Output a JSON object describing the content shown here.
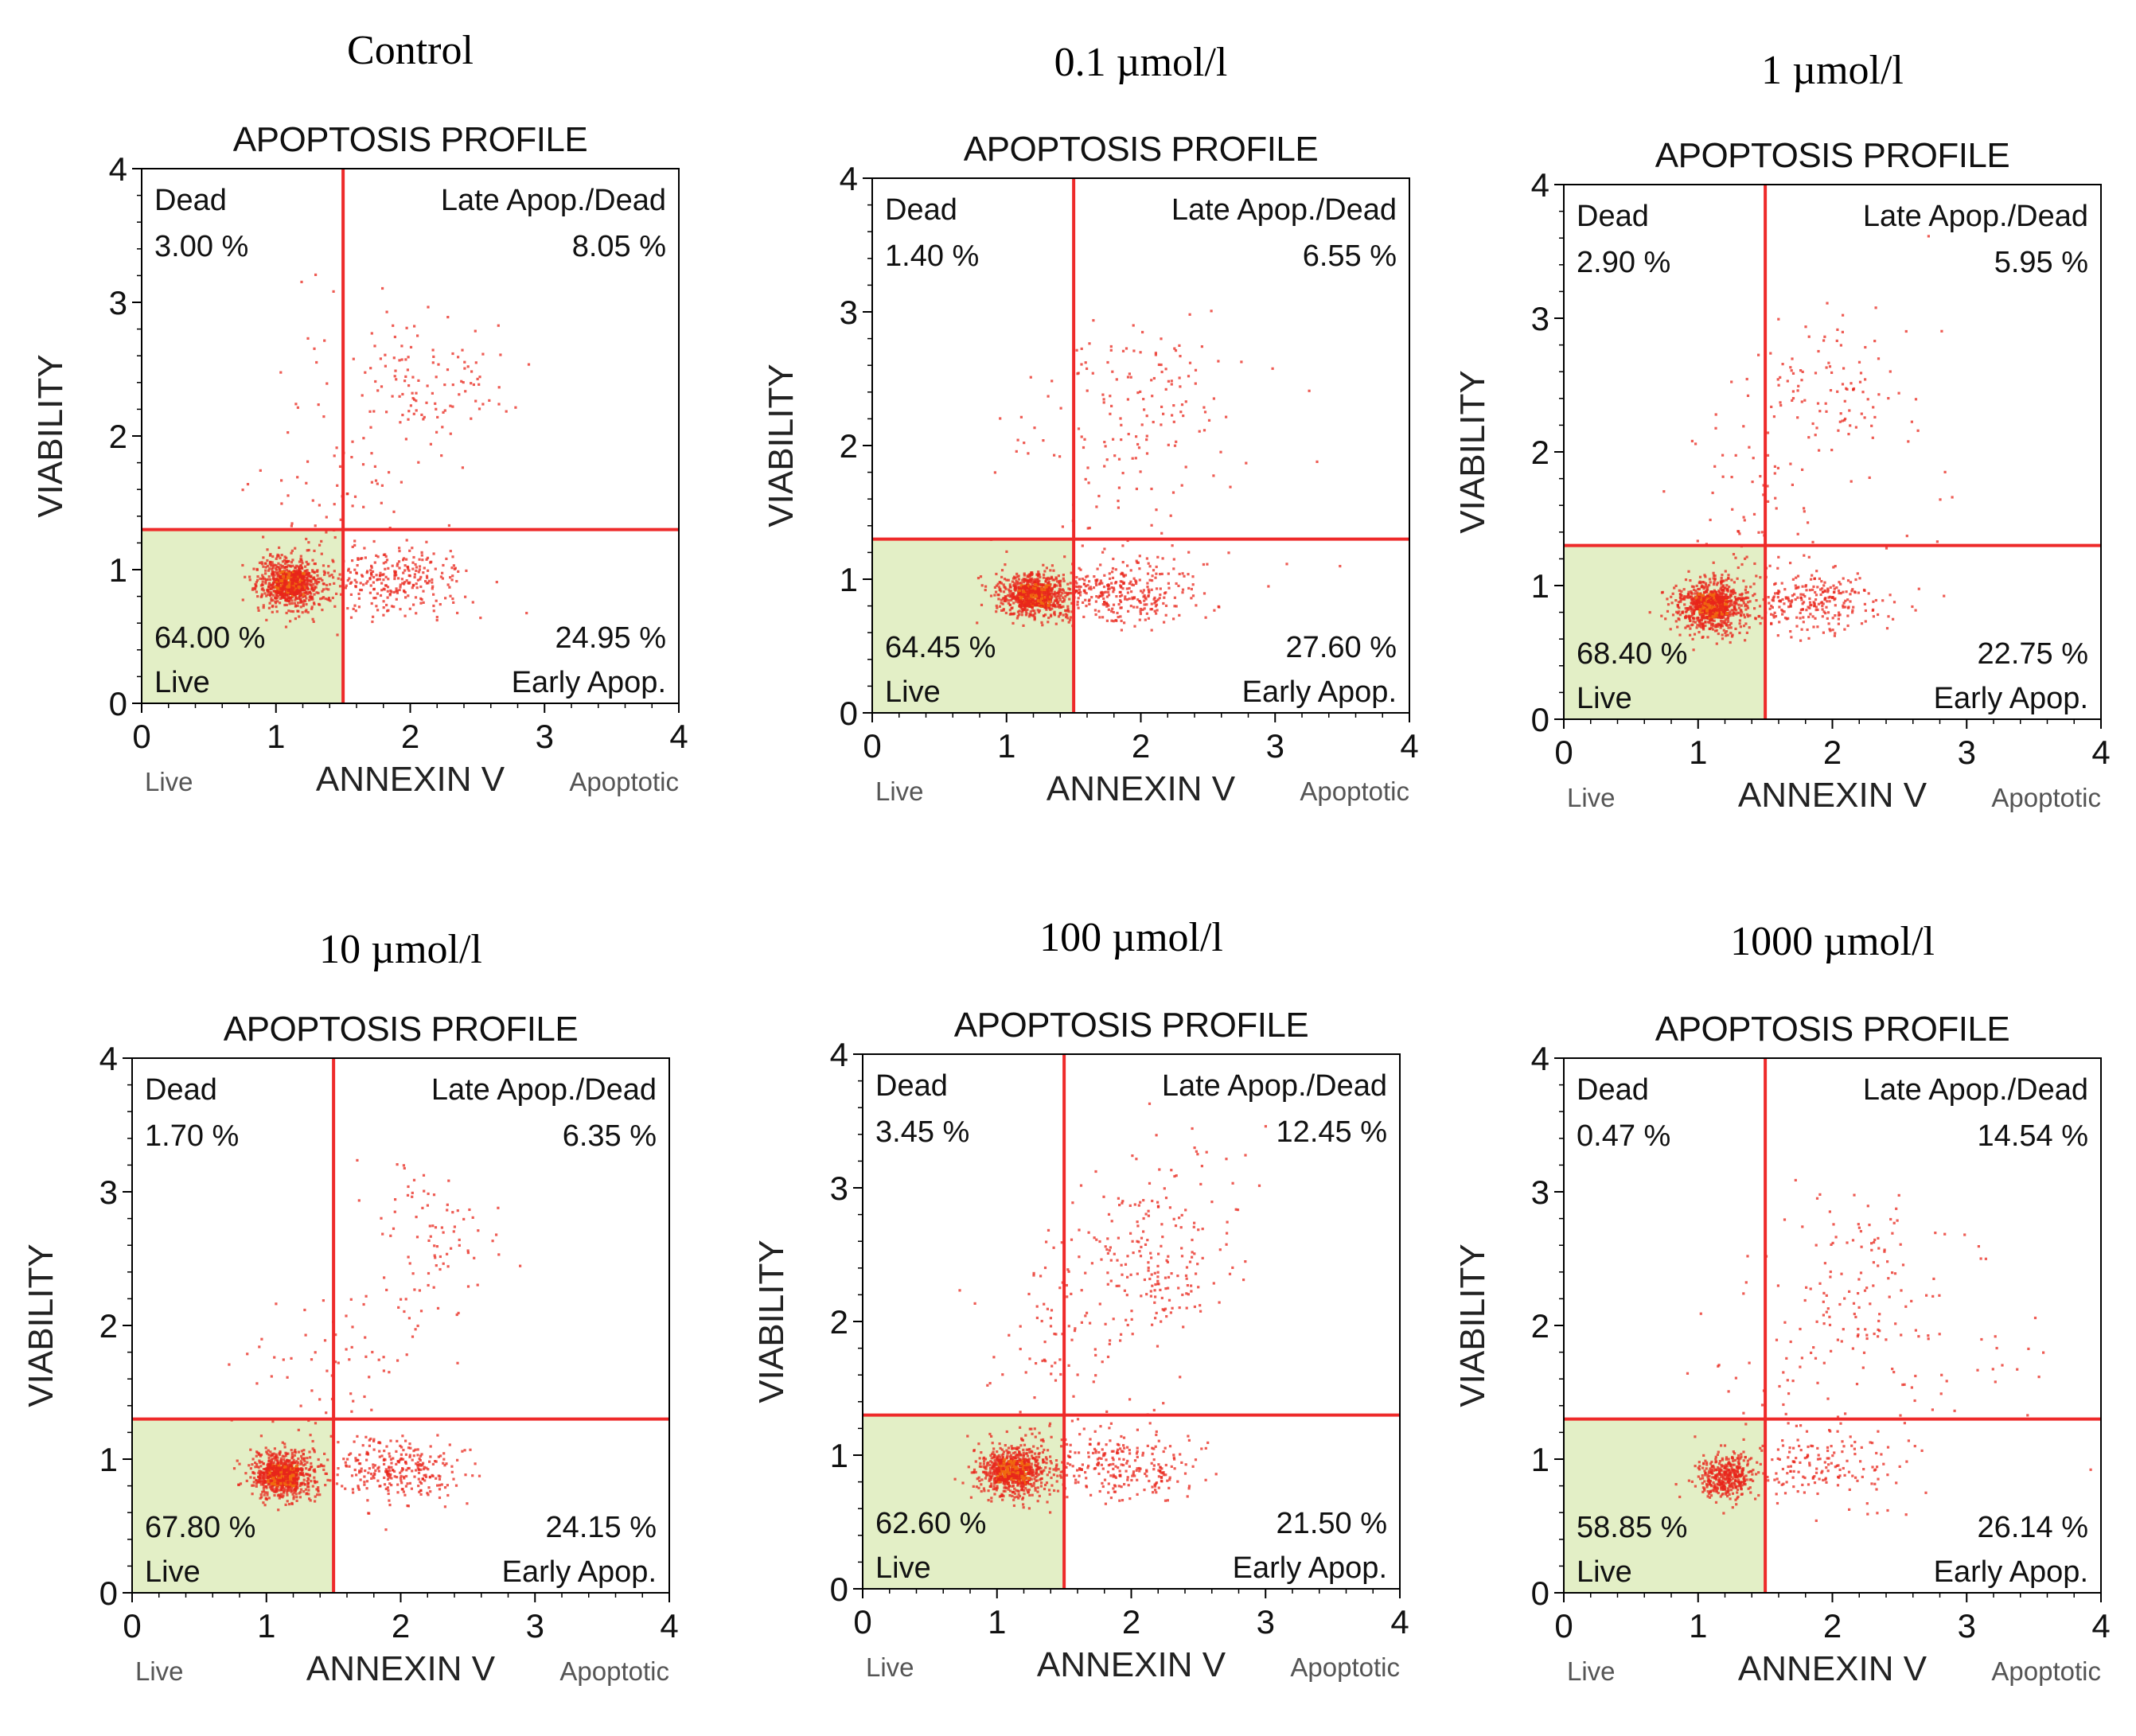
{
  "colors": {
    "gate_line": "#ee2a2a",
    "live_fill": "#e3efc6",
    "dot_primary": "#e8261b",
    "dot_secondary": "#f06a10",
    "frame": "#000000"
  },
  "chart_data": [
    {
      "type": "scatter",
      "condition": "Control",
      "title": "APOPTOSIS PROFILE",
      "xlabel": "ANNEXIN V",
      "ylabel": "VIABILITY",
      "x_left_label": "Live",
      "x_right_label": "Apoptotic",
      "xlim": [
        0,
        4
      ],
      "ylim": [
        0,
        4
      ],
      "xticks": [
        "0",
        "1",
        "2",
        "3",
        "4"
      ],
      "yticks": [
        "0",
        "1",
        "2",
        "3",
        "4"
      ],
      "gate": {
        "x": 1.5,
        "y": 1.3
      },
      "quadrants": {
        "dead": {
          "label": "Dead",
          "value": "3.00 %"
        },
        "late": {
          "label": "Late Apop./Dead",
          "value": "8.05 %"
        },
        "live": {
          "label": "Live",
          "value": "64.00 %"
        },
        "early": {
          "label": "Early Apop.",
          "value": "24.95 %"
        }
      },
      "clusters": [
        {
          "x": 1.1,
          "y": 0.9,
          "sx": 0.12,
          "sy": 0.1,
          "n": 650
        },
        {
          "x": 1.85,
          "y": 0.9,
          "sx": 0.3,
          "sy": 0.13,
          "n": 300
        },
        {
          "x": 2.15,
          "y": 2.45,
          "sx": 0.3,
          "sy": 0.25,
          "n": 110
        },
        {
          "x": 1.55,
          "y": 1.7,
          "sx": 0.35,
          "sy": 0.35,
          "n": 60
        },
        {
          "x": 1.2,
          "y": 2.3,
          "sx": 0.3,
          "sy": 0.4,
          "n": 12
        }
      ]
    },
    {
      "type": "scatter",
      "condition": "0.1 µmol/l",
      "title": "APOPTOSIS PROFILE",
      "xlabel": "ANNEXIN V",
      "ylabel": "VIABILITY",
      "x_left_label": "Live",
      "x_right_label": "Apoptotic",
      "xlim": [
        0,
        4
      ],
      "ylim": [
        0,
        4
      ],
      "xticks": [
        "0",
        "1",
        "2",
        "3",
        "4"
      ],
      "yticks": [
        "0",
        "1",
        "2",
        "3",
        "4"
      ],
      "gate": {
        "x": 1.5,
        "y": 1.3
      },
      "quadrants": {
        "dead": {
          "label": "Dead",
          "value": "1.40 %"
        },
        "late": {
          "label": "Late Apop./Dead",
          "value": "6.55 %"
        },
        "live": {
          "label": "Live",
          "value": "64.45 %"
        },
        "early": {
          "label": "Early Apop.",
          "value": "27.60 %"
        }
      },
      "clusters": [
        {
          "x": 1.2,
          "y": 0.88,
          "sx": 0.13,
          "sy": 0.09,
          "n": 650
        },
        {
          "x": 1.85,
          "y": 0.9,
          "sx": 0.3,
          "sy": 0.12,
          "n": 320
        },
        {
          "x": 2.1,
          "y": 2.4,
          "sx": 0.35,
          "sy": 0.3,
          "n": 100
        },
        {
          "x": 1.6,
          "y": 1.7,
          "sx": 0.35,
          "sy": 0.3,
          "n": 55
        },
        {
          "x": 2.9,
          "y": 1.8,
          "sx": 0.6,
          "sy": 0.6,
          "n": 10
        }
      ]
    },
    {
      "type": "scatter",
      "condition": "1 µmol/l",
      "title": "APOPTOSIS PROFILE",
      "xlabel": "ANNEXIN V",
      "ylabel": "VIABILITY",
      "x_left_label": "Live",
      "x_right_label": "Apoptotic",
      "xlim": [
        0,
        4
      ],
      "ylim": [
        0,
        4
      ],
      "xticks": [
        "0",
        "1",
        "2",
        "3",
        "4"
      ],
      "yticks": [
        "0",
        "1",
        "2",
        "3",
        "4"
      ],
      "gate": {
        "x": 1.5,
        "y": 1.3
      },
      "quadrants": {
        "dead": {
          "label": "Dead",
          "value": "2.90 %"
        },
        "late": {
          "label": "Late Apop./Dead",
          "value": "5.95 %"
        },
        "live": {
          "label": "Live",
          "value": "68.40 %"
        },
        "early": {
          "label": "Early Apop.",
          "value": "22.75 %"
        }
      },
      "clusters": [
        {
          "x": 1.1,
          "y": 0.85,
          "sx": 0.13,
          "sy": 0.1,
          "n": 680
        },
        {
          "x": 1.85,
          "y": 0.88,
          "sx": 0.3,
          "sy": 0.12,
          "n": 280
        },
        {
          "x": 2.0,
          "y": 2.45,
          "sx": 0.25,
          "sy": 0.3,
          "n": 90
        },
        {
          "x": 1.45,
          "y": 1.7,
          "sx": 0.3,
          "sy": 0.4,
          "n": 70
        },
        {
          "x": 2.7,
          "y": 2.4,
          "sx": 0.5,
          "sy": 0.6,
          "n": 12
        }
      ]
    },
    {
      "type": "scatter",
      "condition": "10 µmol/l",
      "title": "APOPTOSIS PROFILE",
      "xlabel": "ANNEXIN V",
      "ylabel": "VIABILITY",
      "x_left_label": "Live",
      "x_right_label": "Apoptotic",
      "xlim": [
        0,
        4
      ],
      "ylim": [
        0,
        4
      ],
      "xticks": [
        "0",
        "1",
        "2",
        "3",
        "4"
      ],
      "yticks": [
        "0",
        "1",
        "2",
        "3",
        "4"
      ],
      "gate": {
        "x": 1.5,
        "y": 1.3
      },
      "quadrants": {
        "dead": {
          "label": "Dead",
          "value": "1.70 %"
        },
        "late": {
          "label": "Late Apop./Dead",
          "value": "6.35 %"
        },
        "live": {
          "label": "Live",
          "value": "67.80 %"
        },
        "early": {
          "label": "Early Apop.",
          "value": "24.15 %"
        }
      },
      "clusters": [
        {
          "x": 1.12,
          "y": 0.88,
          "sx": 0.12,
          "sy": 0.09,
          "n": 700
        },
        {
          "x": 1.95,
          "y": 0.92,
          "sx": 0.25,
          "sy": 0.12,
          "n": 280
        },
        {
          "x": 2.2,
          "y": 2.55,
          "sx": 0.25,
          "sy": 0.35,
          "n": 90
        },
        {
          "x": 1.5,
          "y": 1.65,
          "sx": 0.35,
          "sy": 0.35,
          "n": 60
        }
      ]
    },
    {
      "type": "scatter",
      "condition": "100 µmol/l",
      "title": "APOPTOSIS PROFILE",
      "xlabel": "ANNEXIN V",
      "ylabel": "VIABILITY",
      "x_left_label": "Live",
      "x_right_label": "Apoptotic",
      "xlim": [
        0,
        4
      ],
      "ylim": [
        0,
        4
      ],
      "xticks": [
        "0",
        "1",
        "2",
        "3",
        "4"
      ],
      "yticks": [
        "0",
        "1",
        "2",
        "3",
        "4"
      ],
      "gate": {
        "x": 1.5,
        "y": 1.3
      },
      "quadrants": {
        "dead": {
          "label": "Dead",
          "value": "3.45 %"
        },
        "late": {
          "label": "Late Apop./Dead",
          "value": "12.45 %"
        },
        "live": {
          "label": "Live",
          "value": "62.60 %"
        },
        "early": {
          "label": "Early Apop.",
          "value": "21.50 %"
        }
      },
      "clusters": [
        {
          "x": 1.12,
          "y": 0.88,
          "sx": 0.13,
          "sy": 0.1,
          "n": 640
        },
        {
          "x": 1.9,
          "y": 0.92,
          "sx": 0.3,
          "sy": 0.13,
          "n": 260
        },
        {
          "x": 2.15,
          "y": 2.45,
          "sx": 0.3,
          "sy": 0.3,
          "n": 190
        },
        {
          "x": 1.4,
          "y": 1.75,
          "sx": 0.35,
          "sy": 0.4,
          "n": 80
        },
        {
          "x": 2.5,
          "y": 3.1,
          "sx": 0.3,
          "sy": 0.3,
          "n": 25
        }
      ]
    },
    {
      "type": "scatter",
      "condition": "1000 µmol/l",
      "title": "APOPTOSIS PROFILE",
      "xlabel": "ANNEXIN V",
      "ylabel": "VIABILITY",
      "x_left_label": "Live",
      "x_right_label": "Apoptotic",
      "xlim": [
        0,
        4
      ],
      "ylim": [
        0,
        4
      ],
      "xticks": [
        "0",
        "1",
        "2",
        "3",
        "4"
      ],
      "yticks": [
        "0",
        "1",
        "2",
        "3",
        "4"
      ],
      "gate": {
        "x": 1.5,
        "y": 1.3
      },
      "quadrants": {
        "dead": {
          "label": "Dead",
          "value": "0.47 %"
        },
        "late": {
          "label": "Late Apop./Dead",
          "value": "14.54 %"
        },
        "live": {
          "label": "Live",
          "value": "58.85 %"
        },
        "early": {
          "label": "Early Apop.",
          "value": "26.14 %"
        }
      },
      "clusters": [
        {
          "x": 1.2,
          "y": 0.88,
          "sx": 0.1,
          "sy": 0.08,
          "n": 380
        },
        {
          "x": 1.9,
          "y": 0.95,
          "sx": 0.3,
          "sy": 0.15,
          "n": 160
        },
        {
          "x": 2.15,
          "y": 2.3,
          "sx": 0.35,
          "sy": 0.4,
          "n": 120
        },
        {
          "x": 2.9,
          "y": 1.6,
          "sx": 0.5,
          "sy": 0.4,
          "n": 30
        },
        {
          "x": 1.6,
          "y": 1.6,
          "sx": 0.4,
          "sy": 0.4,
          "n": 40
        }
      ]
    }
  ]
}
